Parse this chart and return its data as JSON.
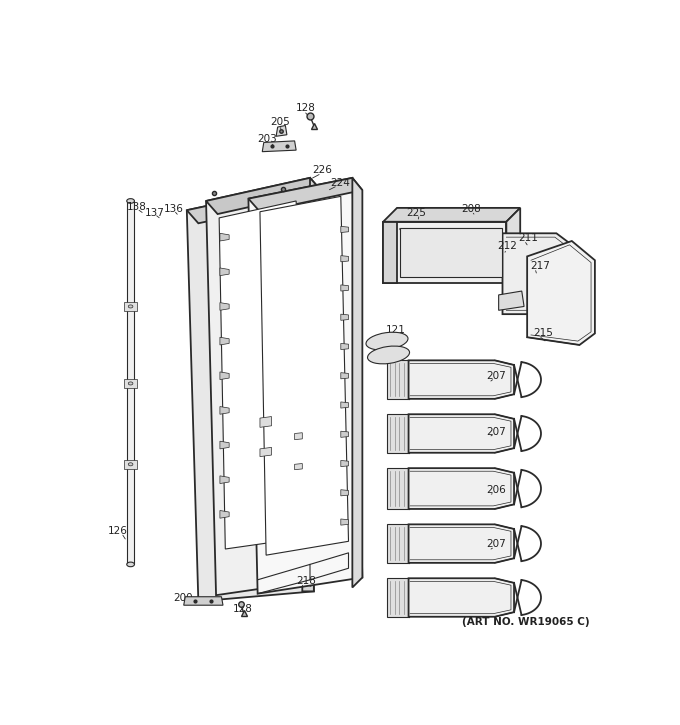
{
  "art_no": "(ART NO. WR19065 C)",
  "bg_color": "#ffffff",
  "line_color": "#2a2a2a",
  "label_color": "#222222",
  "label_fontsize": 7.5
}
